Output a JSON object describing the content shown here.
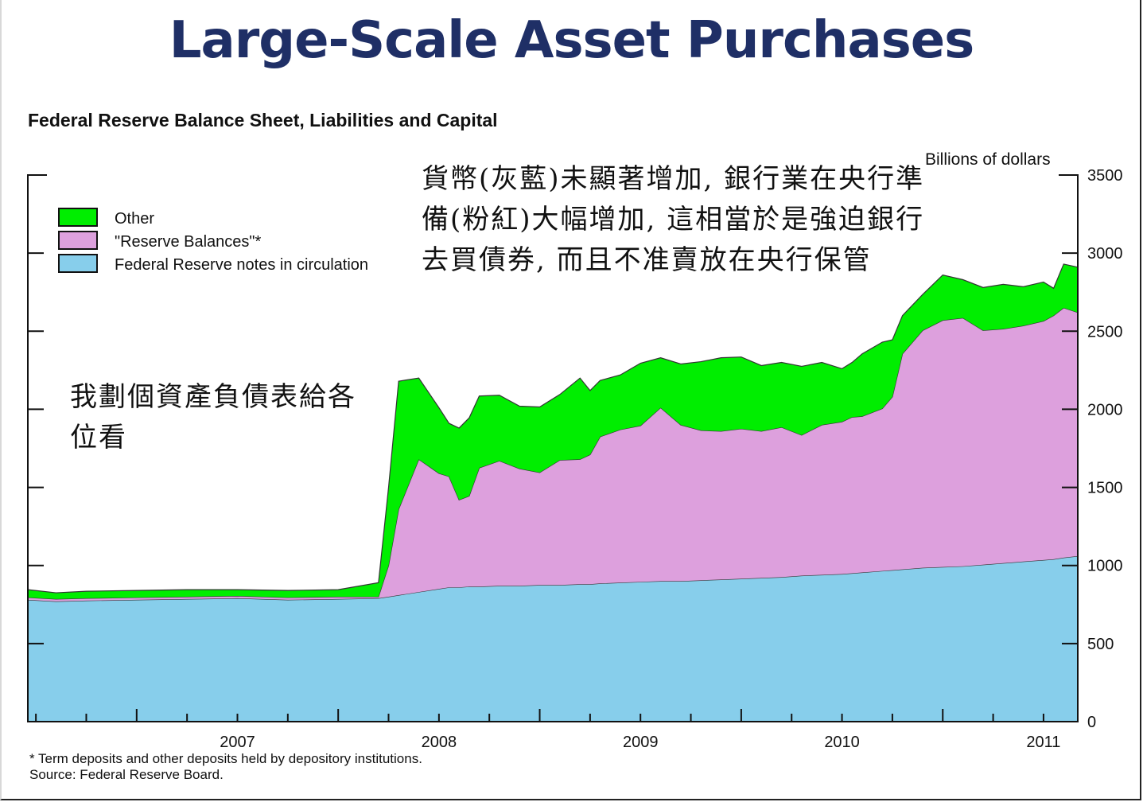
{
  "slide_title": "Large-Scale Asset Purchases",
  "annotation_top": "貨幣(灰藍)未顯著增加, 銀行業在央行準備(粉紅)大幅增加, 這相當於是強迫銀行去買債券, 而且不准賣放在央行保管",
  "annotation_left": "我劃個資產負債表給各位看",
  "chart_data": {
    "type": "area",
    "stacked": true,
    "title": "Federal Reserve Balance Sheet, Liabilities and Capital",
    "ylabel": "Billions of dollars",
    "ylim": [
      0,
      3500
    ],
    "yticks": [
      "0",
      "500",
      "1000",
      "1500",
      "2000",
      "2500",
      "3000",
      "3500"
    ],
    "xticks": [
      "2007",
      "2008",
      "2009",
      "2010",
      "2011"
    ],
    "xlim": [
      2006.46,
      2011.67
    ],
    "legend_position": "top-left",
    "footnote": "* Term deposits and other deposits held by depository institutions.",
    "source": "Source: Federal Reserve Board.",
    "colors": {
      "notes": "#87ceeb",
      "reserves": "#dda0dd",
      "other": "#00ee00"
    },
    "x": [
      2006.46,
      2006.6,
      2006.75,
      2007.0,
      2007.25,
      2007.5,
      2007.75,
      2008.0,
      2008.2,
      2008.25,
      2008.3,
      2008.4,
      2008.5,
      2008.55,
      2008.6,
      2008.65,
      2008.7,
      2008.8,
      2008.9,
      2009.0,
      2009.1,
      2009.2,
      2009.25,
      2009.3,
      2009.4,
      2009.5,
      2009.6,
      2009.7,
      2009.8,
      2009.9,
      2010.0,
      2010.1,
      2010.2,
      2010.3,
      2010.4,
      2010.5,
      2010.55,
      2010.6,
      2010.7,
      2010.75,
      2010.8,
      2010.9,
      2011.0,
      2011.1,
      2011.2,
      2011.3,
      2011.4,
      2011.5,
      2011.55,
      2011.6,
      2011.67
    ],
    "series": [
      {
        "name": "Federal Reserve notes in circulation",
        "values": [
          780,
          770,
          775,
          780,
          785,
          790,
          780,
          785,
          790,
          800,
          810,
          830,
          850,
          860,
          860,
          865,
          865,
          870,
          870,
          875,
          875,
          880,
          880,
          885,
          890,
          895,
          900,
          900,
          905,
          910,
          915,
          920,
          925,
          935,
          940,
          945,
          950,
          955,
          965,
          970,
          975,
          985,
          990,
          995,
          1005,
          1015,
          1025,
          1035,
          1040,
          1050,
          1060
        ]
      },
      {
        "name": "\"Reserve Balances\"*",
        "values": [
          15,
          15,
          15,
          15,
          15,
          15,
          15,
          15,
          10,
          200,
          550,
          850,
          740,
          710,
          560,
          580,
          760,
          800,
          750,
          720,
          800,
          800,
          830,
          940,
          980,
          1000,
          1110,
          1000,
          960,
          950,
          960,
          940,
          960,
          900,
          960,
          975,
          1000,
          1000,
          1040,
          1110,
          1380,
          1520,
          1580,
          1590,
          1500,
          1500,
          1510,
          1530,
          1560,
          1600,
          1560
        ]
      },
      {
        "name": "Other",
        "values": [
          50,
          40,
          45,
          45,
          45,
          40,
          45,
          45,
          90,
          500,
          820,
          520,
          420,
          340,
          460,
          500,
          460,
          420,
          400,
          420,
          420,
          520,
          410,
          360,
          350,
          400,
          320,
          390,
          440,
          470,
          460,
          420,
          415,
          440,
          400,
          340,
          350,
          400,
          425,
          365,
          245,
          230,
          290,
          245,
          275,
          285,
          250,
          250,
          175,
          280,
          290
        ]
      }
    ]
  }
}
